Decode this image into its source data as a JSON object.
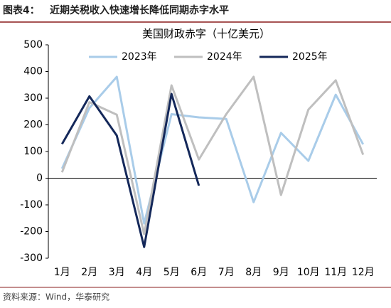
{
  "header": {
    "label": "图表4：",
    "title": "近期关税收入快速增长降低同期赤字水平"
  },
  "source": "资料来源：Wind，华泰研究",
  "chart_data": {
    "type": "line",
    "title": "美国财政赤字（十亿美元）",
    "categories": [
      "1月",
      "2月",
      "3月",
      "4月",
      "5月",
      "6月",
      "7月",
      "8月",
      "9月",
      "10月",
      "11月",
      "12月"
    ],
    "series": [
      {
        "name": "2023年",
        "color": "#a9cce9",
        "values": [
          36,
          263,
          380,
          -170,
          240,
          228,
          222,
          -90,
          170,
          65,
          313,
          127
        ]
      },
      {
        "name": "2024年",
        "color": "#bfbfbf",
        "values": [
          22,
          285,
          238,
          -210,
          348,
          70,
          240,
          380,
          -63,
          257,
          367,
          88
        ]
      },
      {
        "name": "2025年",
        "color": "#14285a",
        "values": [
          128,
          307,
          160,
          -258,
          316,
          -28,
          null,
          null,
          null,
          null,
          null,
          null
        ]
      }
    ],
    "ylim": [
      -300,
      500
    ],
    "yticks": [
      -300,
      -200,
      -100,
      0,
      100,
      200,
      300,
      400,
      500
    ],
    "legend": "top"
  }
}
